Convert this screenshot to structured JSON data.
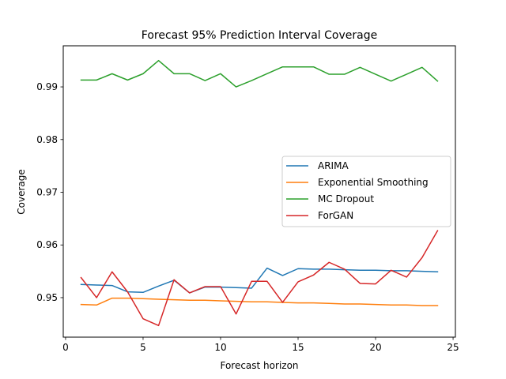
{
  "chart_data": {
    "type": "line",
    "title": "Forecast 95% Prediction Interval Coverage",
    "xlabel": "Forecast horizon",
    "ylabel": "Coverage",
    "xlim": [
      -0.15,
      25.15
    ],
    "ylim": [
      0.9425,
      0.9978
    ],
    "xticks": [
      0,
      5,
      10,
      15,
      20,
      25
    ],
    "yticks": [
      0.95,
      0.96,
      0.97,
      0.98,
      0.99
    ],
    "ytick_labels": [
      "0.95",
      "0.96",
      "0.97",
      "0.98",
      "0.99"
    ],
    "grid": false,
    "legend": "center-right",
    "x": [
      1,
      2,
      3,
      4,
      5,
      6,
      7,
      8,
      9,
      10,
      11,
      12,
      13,
      14,
      15,
      16,
      17,
      18,
      19,
      20,
      21,
      22,
      23,
      24
    ],
    "series": [
      {
        "name": "ARIMA",
        "color": "#1f77b4",
        "values": [
          0.9525,
          0.9524,
          0.9523,
          0.9511,
          0.951,
          0.9522,
          0.9533,
          0.9509,
          0.952,
          0.952,
          0.9519,
          0.9518,
          0.9556,
          0.9542,
          0.9555,
          0.9554,
          0.9554,
          0.9553,
          0.9552,
          0.9552,
          0.9551,
          0.9551,
          0.955,
          0.9549
        ]
      },
      {
        "name": "Exponential Smoothing",
        "color": "#ff7f0e",
        "values": [
          0.9487,
          0.9486,
          0.9499,
          0.9499,
          0.9498,
          0.9497,
          0.9496,
          0.9495,
          0.9495,
          0.9494,
          0.9493,
          0.9492,
          0.9492,
          0.9491,
          0.949,
          0.949,
          0.9489,
          0.9488,
          0.9488,
          0.9487,
          0.9486,
          0.9486,
          0.9485,
          0.9485
        ]
      },
      {
        "name": "MC Dropout",
        "color": "#2ca02c",
        "values": [
          0.9913,
          0.9913,
          0.9925,
          0.9913,
          0.9925,
          0.995,
          0.9925,
          0.9925,
          0.9912,
          0.9925,
          0.99,
          0.9912,
          0.9925,
          0.9938,
          0.9938,
          0.9938,
          0.9924,
          0.9924,
          0.9937,
          0.9924,
          0.9911,
          0.9924,
          0.9937,
          0.9911
        ]
      },
      {
        "name": "ForGAN",
        "color": "#d62728",
        "values": [
          0.9538,
          0.95,
          0.9549,
          0.9511,
          0.946,
          0.9447,
          0.9534,
          0.9509,
          0.9521,
          0.9521,
          0.9469,
          0.9531,
          0.9531,
          0.9491,
          0.953,
          0.9543,
          0.9567,
          0.9554,
          0.9527,
          0.9526,
          0.9552,
          0.9539,
          0.9576,
          0.9627
        ]
      }
    ]
  }
}
